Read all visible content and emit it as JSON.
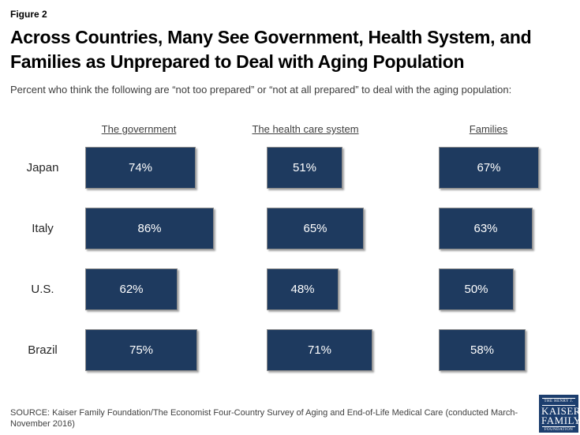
{
  "figure_label": "Figure 2",
  "title_line1": "Across Countries, Many See Government, Health System, and",
  "title_line2": "Families as Unprepared to Deal with Aging Population",
  "subtitle": "Percent who think the following are “not too prepared” or “not at all prepared” to deal with the aging population:",
  "source": "SOURCE: Kaiser Family Foundation/The Economist Four-Country Survey of Aging and End-of-Life Medical Care (conducted March-November 2016)",
  "logo": {
    "line1": "THE HENRY J.",
    "line2": "KAISER",
    "line3": "FAMILY",
    "line4": "FOUNDATION"
  },
  "colors": {
    "bar_fill": "#1E3A5F",
    "bar_border": "#8C8C8C",
    "bar_value_text": "#FFFFFF",
    "header_text": "#404040",
    "logo_background": "#1C3E6E"
  },
  "chart_data": {
    "type": "bar",
    "orientation": "horizontal",
    "unit": "%",
    "title": "Across Countries, Many See Government, Health System, and Families as Unprepared to Deal with Aging Population",
    "subtitle": "Percent who think the following are “not too prepared” or “not at all prepared” to deal with the aging population:",
    "categories": [
      "Japan",
      "Italy",
      "U.S.",
      "Brazil"
    ],
    "series": [
      {
        "name": "The government",
        "values": [
          74,
          86,
          62,
          75
        ]
      },
      {
        "name": "The health care system",
        "values": [
          51,
          65,
          48,
          71
        ]
      },
      {
        "name": "Families",
        "values": [
          67,
          63,
          50,
          58
        ]
      }
    ],
    "xlim": [
      0,
      100
    ],
    "grid": false,
    "legend": "none",
    "data_labels": "inside-center"
  }
}
